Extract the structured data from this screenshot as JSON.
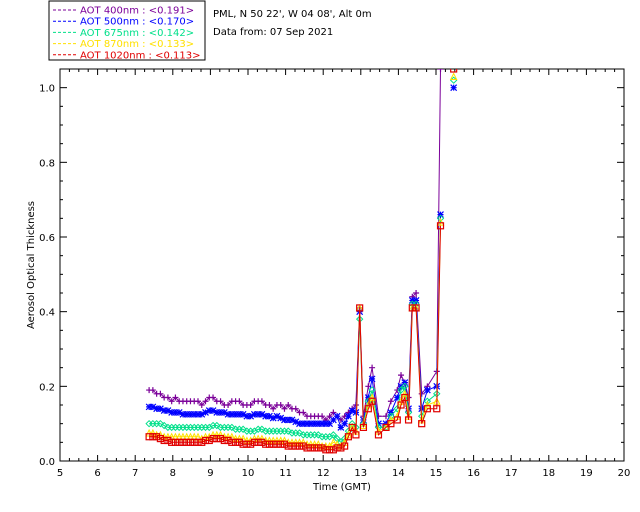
{
  "chart_data": {
    "type": "line",
    "station_line": "PML, N 50 22', W 04 08', Alt 0m",
    "date_line": "Data from: 07 Sep 2021",
    "xlabel": "Time (GMT)",
    "ylabel": "Aerosol Optical Thickness",
    "xlim": [
      5,
      20
    ],
    "ylim": [
      0,
      1.05
    ],
    "xticks": [
      "5",
      "6",
      "7",
      "8",
      "9",
      "10",
      "11",
      "12",
      "13",
      "14",
      "15",
      "16",
      "17",
      "18",
      "19",
      "20"
    ],
    "yticks": [
      "0.0",
      "0.2",
      "0.4",
      "0.6",
      "0.8",
      "1.0"
    ],
    "x": [
      7.37,
      7.47,
      7.57,
      7.67,
      7.77,
      7.87,
      7.97,
      8.07,
      8.17,
      8.27,
      8.37,
      8.47,
      8.57,
      8.67,
      8.77,
      8.87,
      8.97,
      9.07,
      9.17,
      9.27,
      9.37,
      9.47,
      9.57,
      9.67,
      9.77,
      9.87,
      9.97,
      10.07,
      10.17,
      10.27,
      10.37,
      10.47,
      10.57,
      10.67,
      10.77,
      10.87,
      10.97,
      11.07,
      11.17,
      11.27,
      11.37,
      11.47,
      11.57,
      11.67,
      11.77,
      11.87,
      11.97,
      12.07,
      12.17,
      12.27,
      12.37,
      12.47,
      12.57,
      12.67,
      12.77,
      12.87,
      12.97,
      13.07,
      13.2,
      13.3,
      13.47,
      13.67,
      13.8,
      13.97,
      14.07,
      14.17,
      14.27,
      14.37,
      14.47,
      14.62,
      14.77,
      15.02,
      15.12,
      15.22,
      15.47
    ],
    "series": [
      {
        "name": "AOT  400nm : <0.191>",
        "color": "#7B0099",
        "marker": "plus",
        "values": [
          0.19,
          0.19,
          0.18,
          0.18,
          0.17,
          0.17,
          0.16,
          0.17,
          0.16,
          0.16,
          0.16,
          0.16,
          0.16,
          0.16,
          0.15,
          0.16,
          0.17,
          0.17,
          0.16,
          0.16,
          0.15,
          0.15,
          0.16,
          0.16,
          0.16,
          0.15,
          0.15,
          0.15,
          0.16,
          0.16,
          0.16,
          0.15,
          0.15,
          0.14,
          0.15,
          0.15,
          0.14,
          0.15,
          0.14,
          0.14,
          0.13,
          0.13,
          0.12,
          0.12,
          0.12,
          0.12,
          0.12,
          0.11,
          0.12,
          0.13,
          0.12,
          0.11,
          0.12,
          0.13,
          0.14,
          0.15,
          0.41,
          0.12,
          0.2,
          0.25,
          0.12,
          0.12,
          0.16,
          0.19,
          0.23,
          0.21,
          0.17,
          0.44,
          0.45,
          0.18,
          0.2,
          0.24,
          1.05,
          null,
          null
        ]
      },
      {
        "name": "AOT  500nm : <0.170>",
        "color": "#0000FF",
        "marker": "star",
        "values": [
          0.145,
          0.145,
          0.14,
          0.14,
          0.135,
          0.135,
          0.13,
          0.13,
          0.13,
          0.125,
          0.125,
          0.125,
          0.125,
          0.125,
          0.125,
          0.13,
          0.135,
          0.135,
          0.13,
          0.13,
          0.13,
          0.125,
          0.125,
          0.125,
          0.125,
          0.125,
          0.12,
          0.12,
          0.125,
          0.125,
          0.125,
          0.12,
          0.12,
          0.115,
          0.12,
          0.115,
          0.11,
          0.11,
          0.11,
          0.105,
          0.1,
          0.1,
          0.1,
          0.1,
          0.1,
          0.1,
          0.1,
          0.1,
          0.1,
          0.11,
          0.12,
          0.09,
          0.1,
          0.12,
          0.135,
          0.13,
          0.4,
          0.11,
          0.17,
          0.22,
          0.1,
          0.1,
          0.13,
          0.17,
          0.2,
          0.21,
          0.14,
          0.43,
          0.43,
          0.14,
          0.19,
          0.2,
          0.66,
          null,
          1.0
        ]
      },
      {
        "name": "AOT  675nm : <0.142>",
        "color": "#00E08A",
        "marker": "diamond",
        "values": [
          0.1,
          0.1,
          0.1,
          0.1,
          0.095,
          0.09,
          0.09,
          0.09,
          0.09,
          0.09,
          0.09,
          0.09,
          0.09,
          0.09,
          0.09,
          0.09,
          0.09,
          0.095,
          0.095,
          0.09,
          0.09,
          0.09,
          0.09,
          0.085,
          0.085,
          0.085,
          0.08,
          0.08,
          0.08,
          0.085,
          0.085,
          0.08,
          0.08,
          0.08,
          0.08,
          0.08,
          0.08,
          0.08,
          0.075,
          0.075,
          0.075,
          0.07,
          0.07,
          0.07,
          0.07,
          0.07,
          0.065,
          0.065,
          0.065,
          0.07,
          0.06,
          0.05,
          0.06,
          0.08,
          0.1,
          0.09,
          0.38,
          0.1,
          0.16,
          0.19,
          0.09,
          0.09,
          0.12,
          0.14,
          0.19,
          0.2,
          0.13,
          0.42,
          0.42,
          0.12,
          0.16,
          0.18,
          0.65,
          null,
          1.02
        ]
      },
      {
        "name": "AOT  870nm : <0.133>",
        "color": "#FFE000",
        "marker": "triangle",
        "values": [
          0.075,
          0.075,
          0.07,
          0.07,
          0.065,
          0.065,
          0.065,
          0.065,
          0.065,
          0.065,
          0.065,
          0.065,
          0.065,
          0.065,
          0.06,
          0.065,
          0.065,
          0.07,
          0.07,
          0.07,
          0.065,
          0.065,
          0.065,
          0.06,
          0.06,
          0.06,
          0.055,
          0.055,
          0.06,
          0.06,
          0.06,
          0.055,
          0.055,
          0.055,
          0.055,
          0.055,
          0.055,
          0.05,
          0.05,
          0.05,
          0.05,
          0.05,
          0.045,
          0.045,
          0.045,
          0.045,
          0.04,
          0.04,
          0.04,
          0.05,
          0.045,
          0.04,
          0.05,
          0.07,
          0.09,
          0.08,
          0.41,
          0.095,
          0.15,
          0.17,
          0.08,
          0.09,
          0.11,
          0.12,
          0.16,
          0.18,
          0.12,
          0.41,
          0.41,
          0.11,
          0.15,
          0.16,
          0.64,
          null,
          1.03
        ]
      },
      {
        "name": "AOT 1020nm : <0.113>",
        "color": "#E00000",
        "marker": "square",
        "values": [
          0.065,
          0.065,
          0.065,
          0.06,
          0.055,
          0.055,
          0.05,
          0.05,
          0.05,
          0.05,
          0.05,
          0.05,
          0.05,
          0.05,
          0.05,
          0.055,
          0.055,
          0.06,
          0.06,
          0.06,
          0.055,
          0.055,
          0.05,
          0.05,
          0.05,
          0.045,
          0.045,
          0.045,
          0.05,
          0.05,
          0.05,
          0.045,
          0.045,
          0.045,
          0.045,
          0.045,
          0.045,
          0.04,
          0.04,
          0.04,
          0.04,
          0.04,
          0.035,
          0.035,
          0.035,
          0.035,
          0.035,
          0.03,
          0.03,
          0.03,
          0.035,
          0.035,
          0.04,
          0.065,
          0.09,
          0.07,
          0.41,
          0.09,
          0.14,
          0.16,
          0.07,
          0.09,
          0.1,
          0.11,
          0.15,
          0.17,
          0.11,
          0.41,
          0.41,
          0.1,
          0.14,
          0.14,
          0.63,
          null,
          1.05
        ]
      }
    ]
  }
}
